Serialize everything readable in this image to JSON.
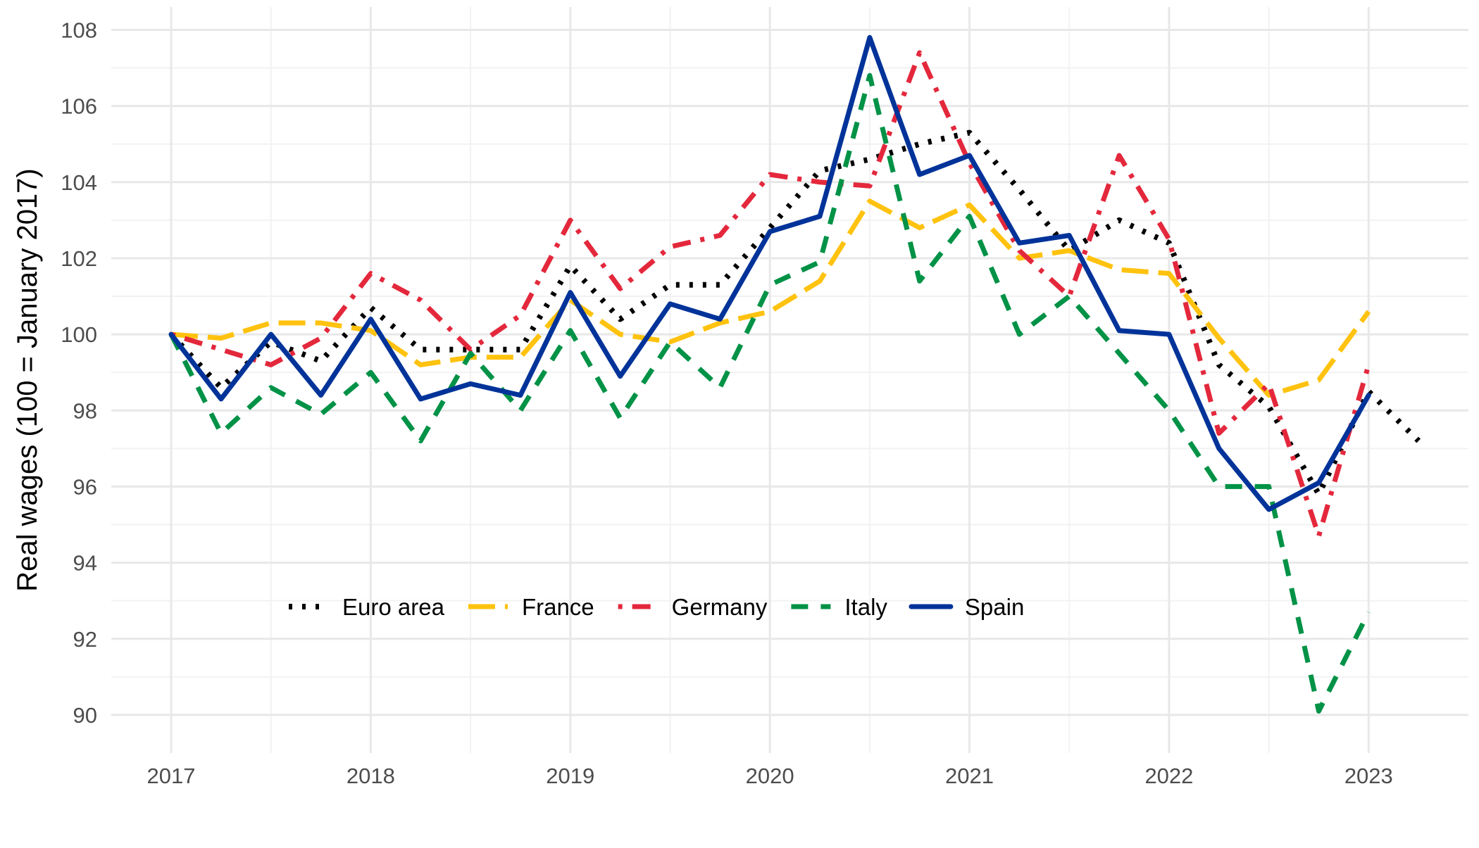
{
  "chart_data": {
    "type": "line",
    "title": "",
    "xlabel": "",
    "ylabel": "Real wages (100 = January 2017)",
    "xlim": [
      2016.7,
      2023.5
    ],
    "ylim": [
      89.0,
      108.6
    ],
    "x_ticks": [
      2017,
      2018,
      2019,
      2020,
      2021,
      2022,
      2023
    ],
    "x_tick_labels": [
      "2017",
      "2018",
      "2019",
      "2020",
      "2021",
      "2022",
      "2023"
    ],
    "y_ticks": [
      90,
      92,
      94,
      96,
      98,
      100,
      102,
      104,
      106,
      108
    ],
    "y_tick_labels": [
      "90",
      "92",
      "94",
      "96",
      "98",
      "100",
      "102",
      "104",
      "106",
      "108"
    ],
    "grid": true,
    "legend_position": "bottom-left",
    "x": [
      2017.0,
      2017.25,
      2017.5,
      2017.75,
      2018.0,
      2018.25,
      2018.5,
      2018.75,
      2019.0,
      2019.25,
      2019.5,
      2019.75,
      2020.0,
      2020.25,
      2020.5,
      2020.75,
      2021.0,
      2021.25,
      2021.5,
      2021.75,
      2022.0,
      2022.25,
      2022.5,
      2022.75,
      2023.0,
      2023.25
    ],
    "series": [
      {
        "name": "Euro area",
        "color": "#000000",
        "dash": "dotted",
        "values": [
          100.0,
          98.6,
          99.8,
          99.3,
          100.7,
          99.6,
          99.6,
          99.6,
          101.8,
          100.4,
          101.3,
          101.3,
          102.8,
          104.3,
          104.6,
          105.0,
          105.3,
          103.8,
          102.2,
          103.0,
          102.4,
          99.2,
          98.1,
          95.8,
          98.5,
          97.2
        ]
      },
      {
        "name": "France",
        "color": "#FFC20E",
        "dash": "longdash",
        "values": [
          100.0,
          99.9,
          100.3,
          100.3,
          100.1,
          99.2,
          99.4,
          99.4,
          100.9,
          100.0,
          99.8,
          100.3,
          100.6,
          101.4,
          103.5,
          102.8,
          103.4,
          102.0,
          102.2,
          101.7,
          101.6,
          99.9,
          98.4,
          98.8,
          100.6,
          null
        ]
      },
      {
        "name": "Germany",
        "color": "#E4283C",
        "dash": "dotdash",
        "values": [
          100.0,
          99.6,
          99.2,
          99.9,
          101.6,
          100.9,
          99.6,
          100.5,
          103.0,
          101.2,
          102.3,
          102.6,
          104.2,
          104.0,
          103.9,
          107.4,
          104.5,
          102.2,
          101.0,
          104.7,
          102.5,
          97.4,
          98.7,
          94.7,
          99.2,
          null
        ]
      },
      {
        "name": "Italy",
        "color": "#009246",
        "dash": "dashed",
        "values": [
          100.0,
          97.4,
          98.6,
          97.9,
          99.0,
          97.2,
          99.5,
          98.0,
          100.1,
          97.8,
          99.8,
          98.6,
          101.3,
          101.9,
          106.8,
          101.4,
          103.1,
          100.0,
          101.0,
          99.5,
          98.0,
          96.0,
          96.0,
          90.1,
          92.7,
          null
        ]
      },
      {
        "name": "Spain",
        "color": "#003399",
        "dash": "solid",
        "values": [
          100.0,
          98.3,
          100.0,
          98.4,
          100.4,
          98.3,
          98.7,
          98.4,
          101.1,
          98.9,
          100.8,
          100.4,
          102.7,
          103.1,
          107.8,
          104.2,
          104.7,
          102.4,
          102.6,
          100.1,
          100.0,
          97.0,
          95.4,
          96.1,
          98.4,
          null
        ]
      }
    ]
  }
}
